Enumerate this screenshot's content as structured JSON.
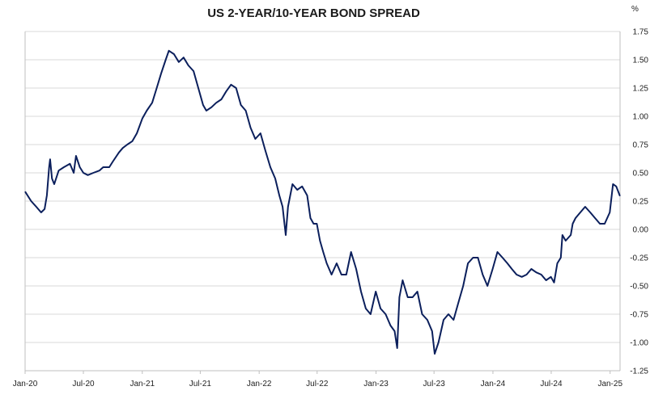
{
  "colors": {
    "line": "#0b1f5c",
    "grid": "#d9d9d9",
    "axis": "#bfbfbf",
    "text": "#222222"
  },
  "chart_data": {
    "type": "line",
    "title": "US 2-YEAR/10-YEAR BOND SPREAD",
    "unit_label": "%",
    "xlabel": "",
    "ylabel": "",
    "ylim": [
      -1.25,
      1.75
    ],
    "y_ticks": [
      "1.75",
      "1.50",
      "1.25",
      "1.00",
      "0.75",
      "0.50",
      "0.25",
      "0.00",
      "-0.25",
      "-0.50",
      "-0.75",
      "-1.00",
      "-1.25"
    ],
    "x_ticks": [
      "Jan-20",
      "Jul-20",
      "Jan-21",
      "Jul-21",
      "Jan-22",
      "Jul-22",
      "Jan-23",
      "Jul-23",
      "Jan-24",
      "Jul-24",
      "Jan-25"
    ],
    "grid": "horizontal",
    "y_axis_side": "right",
    "series": [
      {
        "x": [
          "2020-01-02",
          "2020-01-20",
          "2020-02-05",
          "2020-02-20",
          "2020-03-02",
          "2020-03-09",
          "2020-03-16",
          "2020-03-19",
          "2020-03-25",
          "2020-04-01",
          "2020-04-15",
          "2020-05-01",
          "2020-05-20",
          "2020-06-01",
          "2020-06-08",
          "2020-06-20",
          "2020-07-01",
          "2020-07-15",
          "2020-08-01",
          "2020-08-20",
          "2020-09-01",
          "2020-09-20",
          "2020-10-01",
          "2020-10-20",
          "2020-11-01",
          "2020-11-15",
          "2020-12-01",
          "2020-12-15",
          "2021-01-01",
          "2021-01-15",
          "2021-02-01",
          "2021-02-15",
          "2021-03-01",
          "2021-03-15",
          "2021-03-25",
          "2021-04-10",
          "2021-04-25",
          "2021-05-10",
          "2021-05-25",
          "2021-06-10",
          "2021-06-25",
          "2021-07-10",
          "2021-07-20",
          "2021-08-05",
          "2021-08-20",
          "2021-09-05",
          "2021-09-20",
          "2021-10-05",
          "2021-10-21",
          "2021-11-05",
          "2021-11-20",
          "2021-12-05",
          "2021-12-20",
          "2022-01-05",
          "2022-01-20",
          "2022-02-05",
          "2022-02-20",
          "2022-03-05",
          "2022-03-15",
          "2022-03-25",
          "2022-04-01",
          "2022-04-15",
          "2022-04-30",
          "2022-05-15",
          "2022-05-31",
          "2022-06-10",
          "2022-06-20",
          "2022-06-30",
          "2022-07-10",
          "2022-07-20",
          "2022-07-31",
          "2022-08-15",
          "2022-08-31",
          "2022-09-15",
          "2022-09-30",
          "2022-10-15",
          "2022-10-31",
          "2022-11-15",
          "2022-11-30",
          "2022-12-15",
          "2022-12-31",
          "2023-01-15",
          "2023-01-31",
          "2023-02-15",
          "2023-02-28",
          "2023-03-08",
          "2023-03-15",
          "2023-03-25",
          "2023-04-10",
          "2023-04-25",
          "2023-05-10",
          "2023-05-25",
          "2023-06-10",
          "2023-06-25",
          "2023-07-03",
          "2023-07-15",
          "2023-07-31",
          "2023-08-15",
          "2023-08-31",
          "2023-09-15",
          "2023-09-30",
          "2023-10-15",
          "2023-10-31",
          "2023-11-15",
          "2023-11-30",
          "2023-12-15",
          "2023-12-31",
          "2024-01-15",
          "2024-01-31",
          "2024-02-15",
          "2024-02-29",
          "2024-03-15",
          "2024-03-31",
          "2024-04-15",
          "2024-04-30",
          "2024-05-15",
          "2024-05-31",
          "2024-06-15",
          "2024-06-30",
          "2024-07-10",
          "2024-07-20",
          "2024-07-31",
          "2024-08-05",
          "2024-08-15",
          "2024-08-31",
          "2024-09-06",
          "2024-09-15",
          "2024-09-30",
          "2024-10-15",
          "2024-10-31",
          "2024-11-15",
          "2024-11-30",
          "2024-12-15",
          "2024-12-31",
          "2025-01-10",
          "2025-01-20",
          "2025-01-31"
        ],
        "values": [
          0.33,
          0.25,
          0.2,
          0.15,
          0.18,
          0.3,
          0.55,
          0.62,
          0.45,
          0.4,
          0.52,
          0.55,
          0.58,
          0.5,
          0.65,
          0.55,
          0.5,
          0.48,
          0.5,
          0.52,
          0.55,
          0.55,
          0.6,
          0.68,
          0.72,
          0.75,
          0.78,
          0.85,
          0.98,
          1.05,
          1.12,
          1.25,
          1.38,
          1.5,
          1.58,
          1.55,
          1.48,
          1.52,
          1.45,
          1.4,
          1.25,
          1.1,
          1.05,
          1.08,
          1.12,
          1.15,
          1.22,
          1.28,
          1.25,
          1.1,
          1.05,
          0.9,
          0.8,
          0.85,
          0.7,
          0.55,
          0.45,
          0.3,
          0.2,
          -0.05,
          0.2,
          0.4,
          0.35,
          0.38,
          0.3,
          0.1,
          0.05,
          0.05,
          -0.1,
          -0.2,
          -0.3,
          -0.4,
          -0.3,
          -0.4,
          -0.4,
          -0.2,
          -0.35,
          -0.55,
          -0.7,
          -0.75,
          -0.55,
          -0.7,
          -0.75,
          -0.85,
          -0.9,
          -1.05,
          -0.6,
          -0.45,
          -0.6,
          -0.6,
          -0.55,
          -0.75,
          -0.8,
          -0.9,
          -1.1,
          -1.0,
          -0.8,
          -0.75,
          -0.8,
          -0.65,
          -0.5,
          -0.3,
          -0.25,
          -0.25,
          -0.4,
          -0.5,
          -0.35,
          -0.2,
          -0.25,
          -0.3,
          -0.35,
          -0.4,
          -0.42,
          -0.4,
          -0.35,
          -0.38,
          -0.4,
          -0.45,
          -0.42,
          -0.47,
          -0.3,
          -0.25,
          -0.05,
          -0.1,
          -0.05,
          0.05,
          0.1,
          0.15,
          0.2,
          0.15,
          0.1,
          0.05,
          0.05,
          0.15,
          0.4,
          0.38,
          0.3
        ]
      }
    ]
  }
}
